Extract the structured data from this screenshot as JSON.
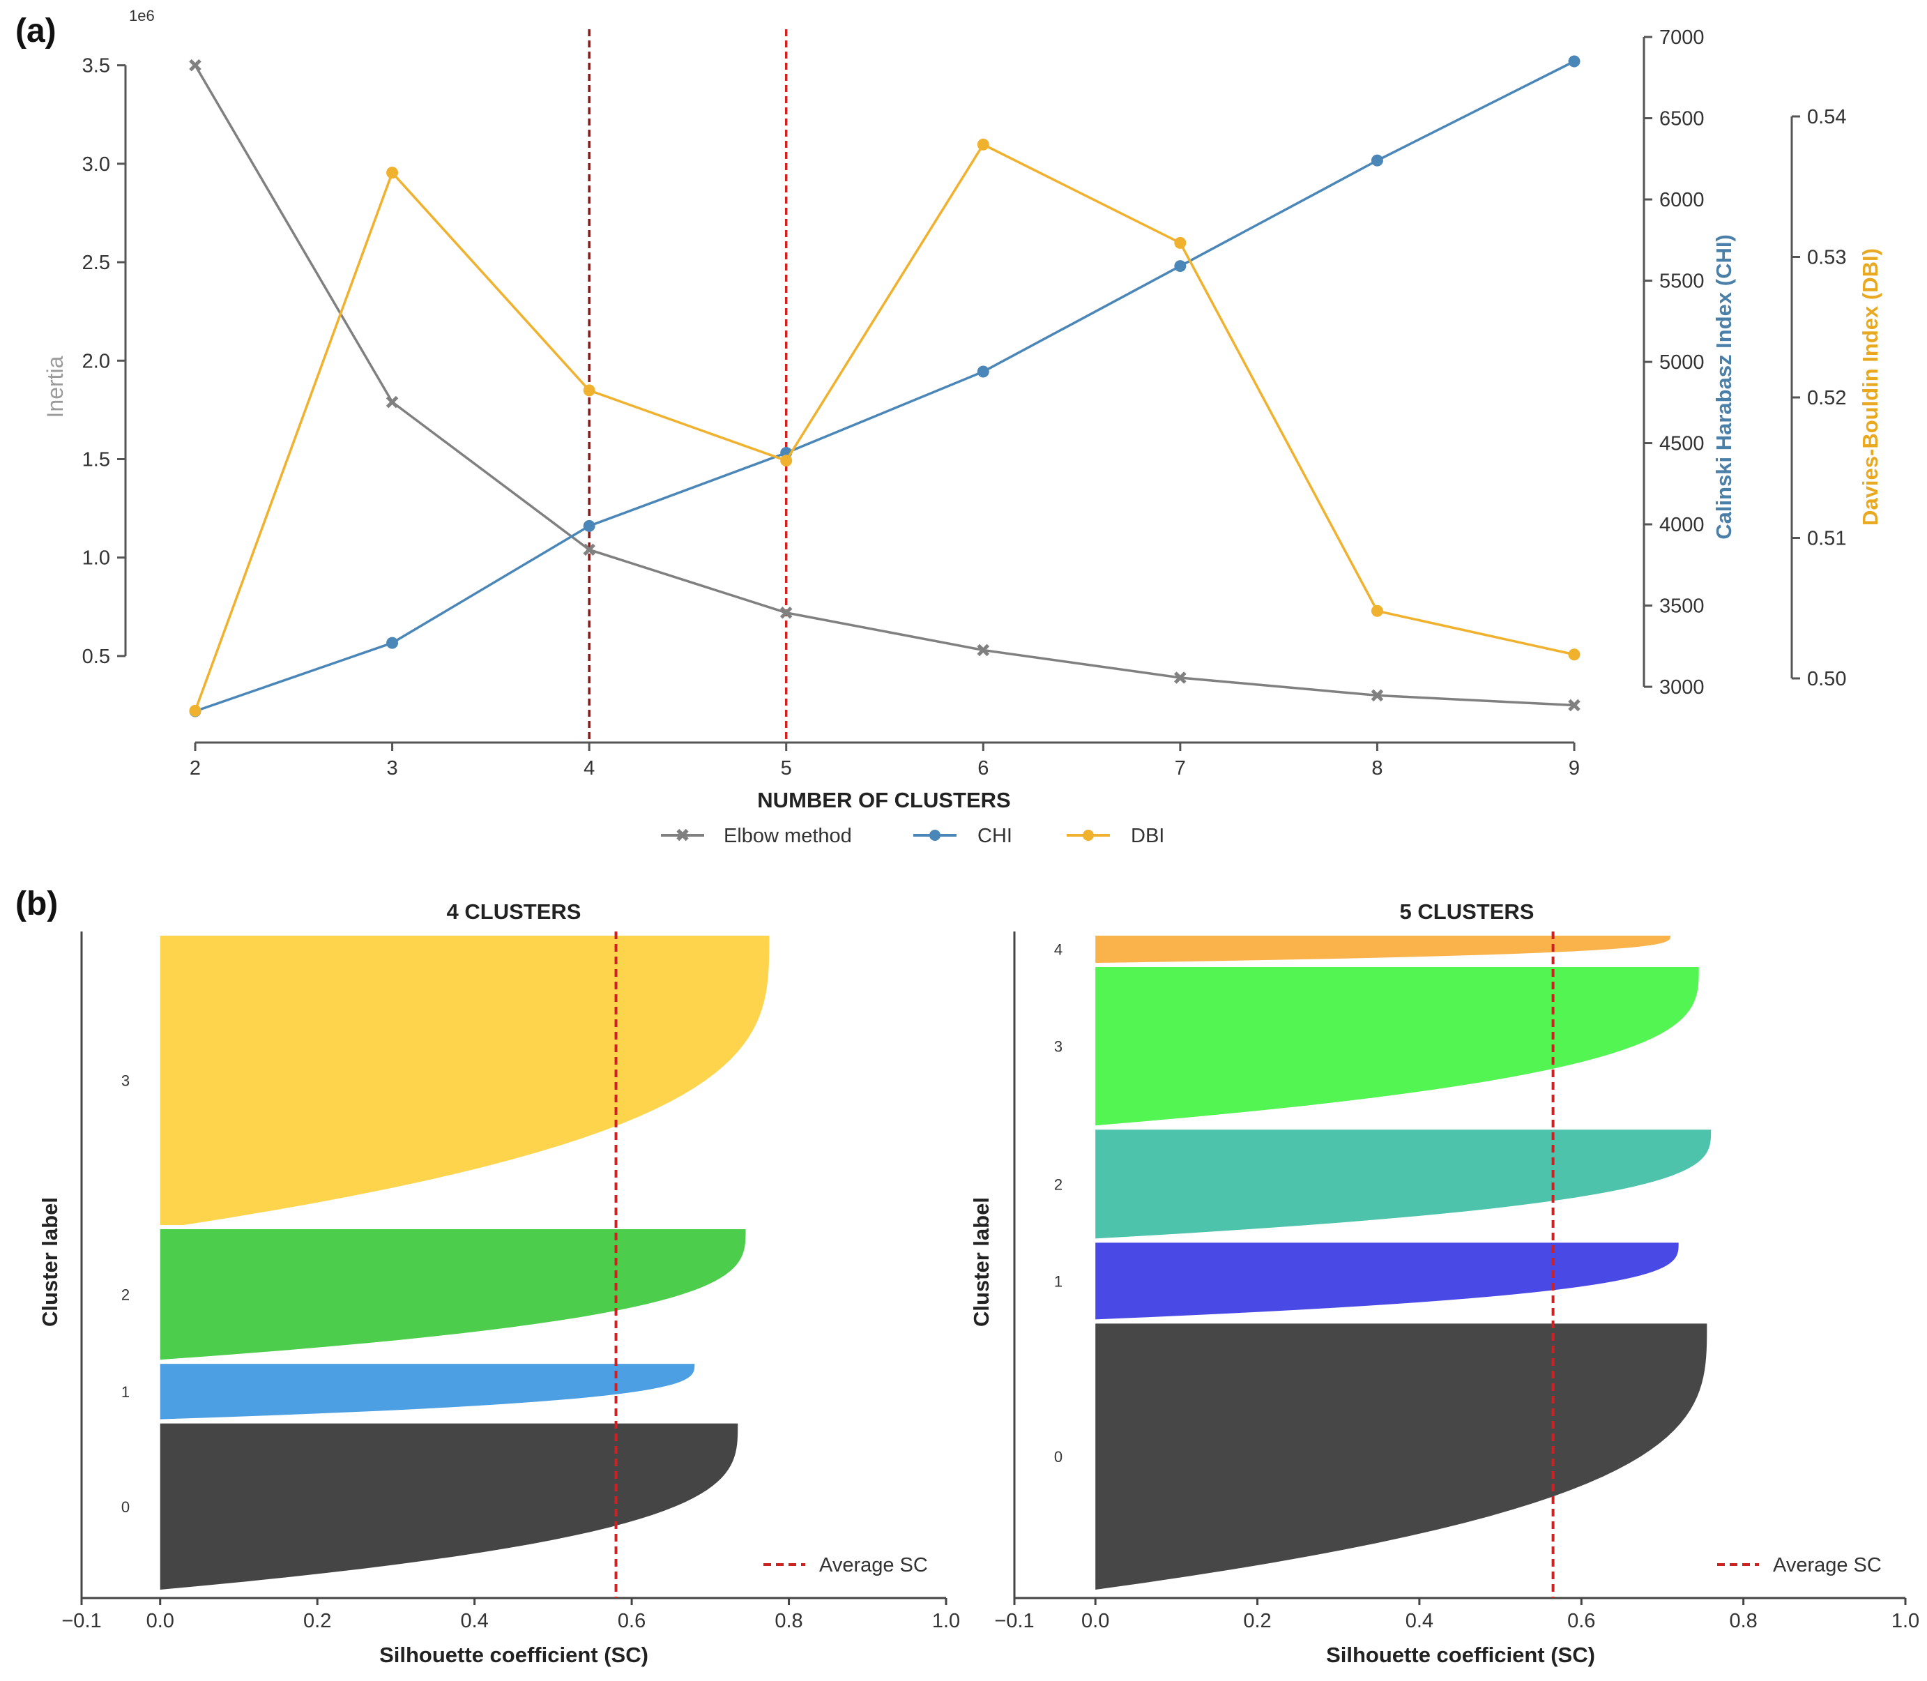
{
  "chart_data": [
    {
      "type": "line",
      "panel_label": "(a)",
      "title": "",
      "xlabel": "NUMBER OF CLUSTERS",
      "x": [
        2,
        3,
        4,
        5,
        6,
        7,
        8,
        9
      ],
      "xlim": [
        2,
        9
      ],
      "axes": {
        "left": {
          "label": "Inertia",
          "offset_text": "1e6",
          "ylim": [
            0.22,
            3.52
          ],
          "ticks": [
            0.5,
            1.0,
            1.5,
            2.0,
            2.5,
            3.0,
            3.5
          ],
          "tick_labels": [
            "0.5",
            "1.0",
            "1.5",
            "2.0",
            "2.5",
            "3.0",
            "3.5"
          ]
        },
        "right": {
          "label": "Calinski Harabasz Index (CHI)",
          "ylim": [
            2850,
            6850
          ],
          "ticks": [
            3000,
            3500,
            4000,
            4500,
            5000,
            5500,
            6000,
            6500,
            7000
          ],
          "tick_labels": [
            "3000",
            "3500",
            "4000",
            "4500",
            "5000",
            "5500",
            "6000",
            "6500",
            "7000"
          ],
          "color": "#4a7fa8"
        },
        "right2": {
          "label": "Davies-Bouldin Index (DBI)",
          "ylim": [
            0.5,
            0.54
          ],
          "ticks": [
            0.5,
            0.51,
            0.52,
            0.53,
            0.54
          ],
          "tick_labels": [
            "0.50",
            "0.51",
            "0.52",
            "0.53",
            "0.54"
          ],
          "color": "#e8a820"
        }
      },
      "series": [
        {
          "name": "Elbow method",
          "axis": "left",
          "color": "#808080",
          "marker": "x",
          "values": [
            3.5,
            1.79,
            1.04,
            0.72,
            0.53,
            0.39,
            0.3,
            0.25
          ]
        },
        {
          "name": "CHI",
          "axis": "right",
          "color": "#4a87b8",
          "marker": "o",
          "values": [
            2850,
            3270,
            3990,
            4440,
            4940,
            5590,
            6240,
            6850
          ]
        },
        {
          "name": "DBI",
          "axis": "right2",
          "color": "#f0b22e",
          "marker": "o",
          "values": [
            0.4977,
            0.536,
            0.5205,
            0.5155,
            0.538,
            0.531,
            0.5048,
            0.5017
          ]
        }
      ],
      "vlines": [
        {
          "x": 4,
          "color": "#8b1a1a"
        },
        {
          "x": 5,
          "color": "#d42020"
        }
      ],
      "legend_placement": "bottom-center",
      "grid": false
    },
    {
      "type": "area",
      "panel_label": "(b)",
      "title": "4 CLUSTERS",
      "xlabel": "Silhouette coefficient (SC)",
      "ylabel": "Cluster label",
      "xlim": [
        -0.1,
        1.0
      ],
      "xticks": [
        -0.1,
        0.0,
        0.2,
        0.4,
        0.6,
        0.8,
        1.0
      ],
      "xtick_labels": [
        "−0.1",
        "0.0",
        "0.2",
        "0.4",
        "0.6",
        "0.8",
        "1.0"
      ],
      "average_sc": 0.58,
      "average_label": "Average SC",
      "clusters": [
        {
          "label": "0",
          "color": "#454545",
          "size": 135,
          "max_sc": 0.735,
          "min_sc": 0.0
        },
        {
          "label": "1",
          "color": "#4d9fe3",
          "size": 45,
          "max_sc": 0.68,
          "min_sc": 0.0
        },
        {
          "label": "2",
          "color": "#4ccd4c",
          "size": 106,
          "max_sc": 0.745,
          "min_sc": 0.0
        },
        {
          "label": "3",
          "color": "#fdd44b",
          "size": 235,
          "max_sc": 0.775,
          "min_sc": 0.03
        }
      ]
    },
    {
      "type": "area",
      "title": "5 CLUSTERS",
      "xlabel": "Silhouette coefficient (SC)",
      "ylabel": "Cluster label",
      "xlim": [
        -0.1,
        1.0
      ],
      "xticks": [
        -0.1,
        0.0,
        0.2,
        0.4,
        0.6,
        0.8,
        1.0
      ],
      "xtick_labels": [
        "−0.1",
        "0.0",
        "0.2",
        "0.4",
        "0.6",
        "0.8",
        "1.0"
      ],
      "average_sc": 0.565,
      "average_label": "Average SC",
      "clusters": [
        {
          "label": "0",
          "color": "#474747",
          "size": 215,
          "max_sc": 0.755,
          "min_sc": 0.0
        },
        {
          "label": "1",
          "color": "#4949e6",
          "size": 62,
          "max_sc": 0.72,
          "min_sc": 0.0
        },
        {
          "label": "2",
          "color": "#4cc3aa",
          "size": 88,
          "max_sc": 0.76,
          "min_sc": 0.0
        },
        {
          "label": "3",
          "color": "#52f552",
          "size": 128,
          "max_sc": 0.745,
          "min_sc": 0.0
        },
        {
          "label": "4",
          "color": "#fab24b",
          "size": 22,
          "max_sc": 0.71,
          "min_sc": 0.0
        }
      ]
    }
  ]
}
